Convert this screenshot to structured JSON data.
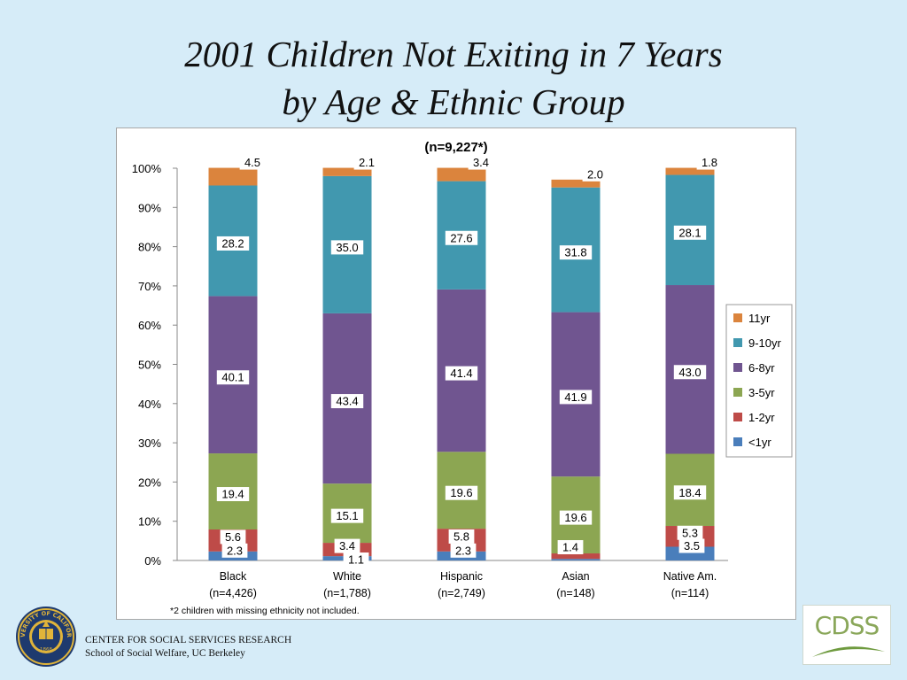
{
  "slide": {
    "title_line1": "2001 Children Not Exiting in 7 Years",
    "title_line2": "by Age & Ethnic Group",
    "footer_line1": "CENTER FOR SOCIAL SERVICES RESEARCH",
    "footer_line2": "School of Social Welfare, UC Berkeley",
    "logo_text": "CDSS",
    "seal_text": "UNIVERSITY OF CALIFORNIA",
    "seal_year": "1868",
    "seal_icon": "university-seal-icon"
  },
  "chart_data": {
    "type": "bar",
    "stacked": true,
    "title": "(n=9,227*)",
    "footnote": "*2 children with missing ethnicity not included.",
    "ylim": [
      0,
      100
    ],
    "yticks": [
      "0%",
      "10%",
      "20%",
      "30%",
      "40%",
      "50%",
      "60%",
      "70%",
      "80%",
      "90%",
      "100%"
    ],
    "grid": false,
    "legend_position": "right",
    "categories": [
      "Black",
      "White",
      "Hispanic",
      "Asian",
      "Native Am."
    ],
    "category_counts": [
      "(n=4,426)",
      "(n=1,788)",
      "(n=2,749)",
      "(n=148)",
      "(n=114)"
    ],
    "series": [
      {
        "name": "<1yr",
        "color": "#4a7ebb",
        "values": [
          2.3,
          1.1,
          2.3,
          0.4,
          3.5
        ],
        "labels": [
          "2.3",
          "1.1",
          "2.3",
          "",
          "3.5"
        ]
      },
      {
        "name": "1-2yr",
        "color": "#be4b48",
        "values": [
          5.6,
          3.4,
          5.8,
          1.4,
          5.3
        ],
        "labels": [
          "5.6",
          "3.4",
          "5.8",
          "1.4",
          "5.3"
        ]
      },
      {
        "name": "3-5yr",
        "color": "#8ca652",
        "values": [
          19.4,
          15.1,
          19.6,
          19.6,
          18.4
        ],
        "labels": [
          "19.4",
          "15.1",
          "19.6",
          "19.6",
          "18.4"
        ]
      },
      {
        "name": "6-8yr",
        "color": "#705590",
        "values": [
          40.1,
          43.4,
          41.4,
          41.9,
          43.0
        ],
        "labels": [
          "40.1",
          "43.4",
          "41.4",
          "41.9",
          "43.0"
        ]
      },
      {
        "name": "9-10yr",
        "color": "#4198af",
        "values": [
          28.2,
          35.0,
          27.6,
          31.8,
          28.1
        ],
        "labels": [
          "28.2",
          "35.0",
          "27.6",
          "31.8",
          "28.1"
        ]
      },
      {
        "name": "11yr",
        "color": "#db843d",
        "values": [
          4.5,
          2.1,
          3.4,
          2.0,
          1.8
        ],
        "labels": [
          "4.5",
          "2.1",
          "3.4",
          "2.0",
          "1.8"
        ]
      }
    ]
  }
}
